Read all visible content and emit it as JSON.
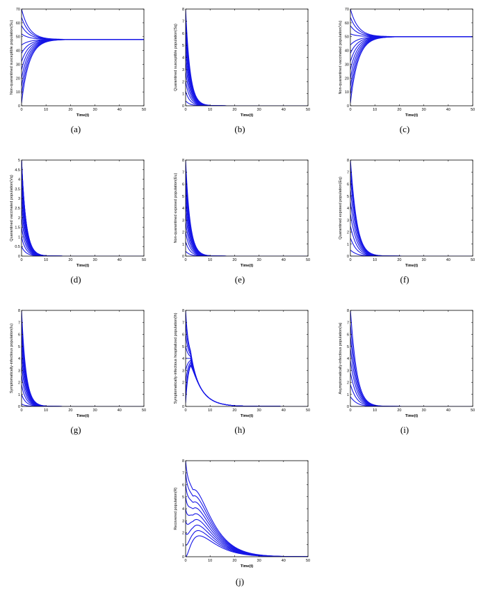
{
  "figure": {
    "panels": [
      {
        "caption": "(a)",
        "type": "line",
        "xlabel": "Time(t)",
        "ylabel": "Non-quarantined susceptible population(Su)",
        "xlim": [
          0,
          50
        ],
        "ylim": [
          0,
          70
        ],
        "xticks": [
          0,
          10,
          20,
          30,
          40,
          50
        ],
        "yticks": [
          0,
          10,
          20,
          30,
          40,
          50,
          60,
          70
        ],
        "curve_model": "converge",
        "equilibrium": 48,
        "initial_values": [
          2,
          8,
          14,
          20,
          26,
          32,
          38,
          44,
          52,
          58,
          64,
          70
        ]
      },
      {
        "caption": "(b)",
        "type": "line",
        "xlabel": "Time(t)",
        "ylabel": "Quarantined susceptible population(Sq)",
        "xlim": [
          0,
          50
        ],
        "ylim": [
          0,
          8
        ],
        "xticks": [
          0,
          10,
          20,
          30,
          40,
          50
        ],
        "yticks": [
          0,
          1,
          2,
          3,
          4,
          5,
          6,
          7,
          8
        ],
        "curve_model": "decay",
        "initial_values": [
          0.4,
          1.2,
          2.0,
          2.8,
          3.6,
          4.4,
          5.2,
          6.0,
          6.8,
          7.6,
          8.0
        ]
      },
      {
        "caption": "(c)",
        "type": "line",
        "xlabel": "Time(t)",
        "ylabel": "Non-quarantined vaccinated population(Vu)",
        "xlim": [
          0,
          50
        ],
        "ylim": [
          0,
          70
        ],
        "xticks": [
          0,
          10,
          20,
          30,
          40,
          50
        ],
        "yticks": [
          0,
          10,
          20,
          30,
          40,
          50,
          60,
          70
        ],
        "curve_model": "converge",
        "equilibrium": 50,
        "initial_values": [
          2,
          8,
          14,
          20,
          26,
          32,
          38,
          44,
          52,
          58,
          64,
          70
        ]
      },
      {
        "caption": "(d)",
        "type": "line",
        "xlabel": "Time(t)",
        "ylabel": "Quarantined vaccinated population(Vq)",
        "xlim": [
          0,
          50
        ],
        "ylim": [
          0,
          5
        ],
        "xticks": [
          0,
          10,
          20,
          30,
          40,
          50
        ],
        "yticks": [
          0,
          0.5,
          1,
          1.5,
          2,
          2.5,
          3,
          3.5,
          4,
          4.5,
          5
        ],
        "curve_model": "decay",
        "initial_values": [
          0.5,
          1.0,
          1.5,
          2.0,
          2.5,
          3.0,
          3.5,
          4.0,
          4.5,
          5.0,
          5.0,
          5.0
        ]
      },
      {
        "caption": "(e)",
        "type": "line",
        "xlabel": "Time(t)",
        "ylabel": "Non-quarantined exposed population(Eu)",
        "xlim": [
          0,
          50
        ],
        "ylim": [
          0,
          8
        ],
        "xticks": [
          0,
          10,
          20,
          30,
          40,
          50
        ],
        "yticks": [
          0,
          1,
          2,
          3,
          4,
          5,
          6,
          7,
          8
        ],
        "curve_model": "decay",
        "initial_values": [
          0.4,
          1.2,
          2.0,
          2.8,
          3.6,
          4.4,
          5.2,
          6.0,
          6.8,
          7.6,
          8.0
        ]
      },
      {
        "caption": "(f)",
        "type": "line",
        "xlabel": "Time(t)",
        "ylabel": "Quarantined exposed population(Eq)",
        "xlim": [
          0,
          50
        ],
        "ylim": [
          0,
          8
        ],
        "xticks": [
          0,
          10,
          20,
          30,
          40,
          50
        ],
        "yticks": [
          0,
          1,
          2,
          3,
          4,
          5,
          6,
          7,
          8
        ],
        "curve_model": "hump",
        "initial_values": [
          0.0,
          0.5,
          1.5,
          2.5,
          3.5,
          4.5,
          5.5,
          6.5,
          7.3,
          8.0
        ]
      },
      {
        "caption": "(g)",
        "type": "line",
        "xlabel": "Time(t)",
        "ylabel": "Symptomatically-infectious population(Iu)",
        "xlim": [
          0,
          50
        ],
        "ylim": [
          0,
          8
        ],
        "xticks": [
          0,
          10,
          20,
          30,
          40,
          50
        ],
        "yticks": [
          0,
          1,
          2,
          3,
          4,
          5,
          6,
          7,
          8
        ],
        "curve_model": "decay",
        "initial_values": [
          0.2,
          1.0,
          1.8,
          2.6,
          3.4,
          4.2,
          5.0,
          5.8,
          6.6,
          7.4,
          8.0
        ]
      },
      {
        "caption": "(h)",
        "type": "line",
        "xlabel": "Time(t)",
        "ylabel": "Symptomatically-infectious hospitalized population(Ih)",
        "xlim": [
          0,
          50
        ],
        "ylim": [
          0,
          8
        ],
        "xticks": [
          0,
          10,
          20,
          30,
          40,
          50
        ],
        "yticks": [
          0,
          1,
          2,
          3,
          4,
          5,
          6,
          7,
          8
        ],
        "curve_model": "hospital",
        "initial_values": [
          0.3,
          1.0,
          2.0,
          3.0,
          4.0,
          5.0,
          6.0,
          7.0,
          8.0
        ]
      },
      {
        "caption": "(i)",
        "type": "line",
        "xlabel": "Time(t)",
        "ylabel": "Asymptomatically-infectious population(Ia)",
        "xlim": [
          0,
          50
        ],
        "ylim": [
          0,
          8
        ],
        "xticks": [
          0,
          10,
          20,
          30,
          40,
          50
        ],
        "yticks": [
          0,
          1,
          2,
          3,
          4,
          5,
          6,
          7,
          8
        ],
        "curve_model": "hump",
        "initial_values": [
          0.0,
          0.8,
          1.8,
          2.8,
          3.8,
          4.8,
          5.8,
          6.8,
          8.0
        ]
      },
      {
        "caption": "(j)",
        "type": "line",
        "xlabel": "Time(t)",
        "ylabel": "Recovered population(R)",
        "xlim": [
          0,
          50
        ],
        "ylim": [
          0,
          8
        ],
        "xticks": [
          0,
          10,
          20,
          30,
          40,
          50
        ],
        "yticks": [
          0,
          1,
          2,
          3,
          4,
          5,
          6,
          7,
          8
        ],
        "curve_model": "recovered",
        "initial_values": [
          0,
          1,
          2,
          3,
          4,
          5,
          6,
          7,
          8
        ]
      }
    ]
  }
}
